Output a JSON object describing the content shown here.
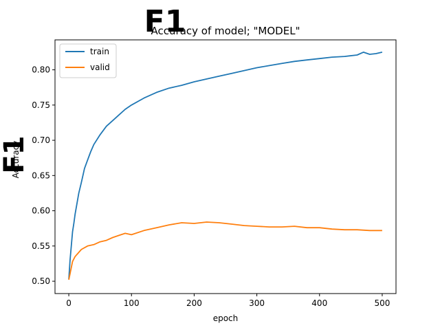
{
  "chart_data": {
    "type": "line",
    "title": "Accuracy of model; \"MODEL\"",
    "title_overwrite": "F1",
    "xlabel": "epoch",
    "ylabel": "Accuracy",
    "ylabel_overwrite": "F1",
    "xlim": [
      -22,
      522
    ],
    "ylim": [
      0.4825,
      0.8425
    ],
    "xticks": [
      0,
      100,
      200,
      300,
      400,
      500
    ],
    "yticks": [
      0.5,
      0.55,
      0.6,
      0.65,
      0.7,
      0.75,
      0.8
    ],
    "legend_position": "upper-left",
    "grid": false,
    "series": [
      {
        "name": "train",
        "color": "#1f77b4",
        "x": [
          0,
          2,
          4,
          6,
          8,
          10,
          13,
          16,
          20,
          25,
          30,
          35,
          40,
          50,
          60,
          70,
          80,
          90,
          100,
          120,
          140,
          160,
          180,
          200,
          220,
          240,
          260,
          280,
          300,
          320,
          340,
          360,
          380,
          400,
          420,
          440,
          460,
          470,
          480,
          490,
          500
        ],
        "y": [
          0.503,
          0.53,
          0.55,
          0.57,
          0.582,
          0.595,
          0.61,
          0.625,
          0.64,
          0.66,
          0.672,
          0.684,
          0.694,
          0.708,
          0.72,
          0.728,
          0.736,
          0.744,
          0.75,
          0.76,
          0.768,
          0.774,
          0.778,
          0.783,
          0.787,
          0.791,
          0.795,
          0.799,
          0.803,
          0.806,
          0.809,
          0.812,
          0.814,
          0.816,
          0.818,
          0.819,
          0.821,
          0.825,
          0.822,
          0.823,
          0.825
        ]
      },
      {
        "name": "valid",
        "color": "#ff7f0e",
        "x": [
          0,
          3,
          6,
          10,
          15,
          20,
          30,
          40,
          50,
          60,
          70,
          80,
          90,
          100,
          120,
          140,
          160,
          180,
          200,
          220,
          240,
          260,
          280,
          300,
          320,
          340,
          360,
          380,
          400,
          420,
          440,
          460,
          480,
          500
        ],
        "y": [
          0.502,
          0.515,
          0.528,
          0.535,
          0.54,
          0.545,
          0.55,
          0.552,
          0.556,
          0.558,
          0.562,
          0.565,
          0.568,
          0.566,
          0.572,
          0.576,
          0.58,
          0.583,
          0.582,
          0.584,
          0.583,
          0.581,
          0.579,
          0.578,
          0.577,
          0.577,
          0.578,
          0.576,
          0.576,
          0.574,
          0.573,
          0.573,
          0.572,
          0.572
        ]
      }
    ]
  }
}
